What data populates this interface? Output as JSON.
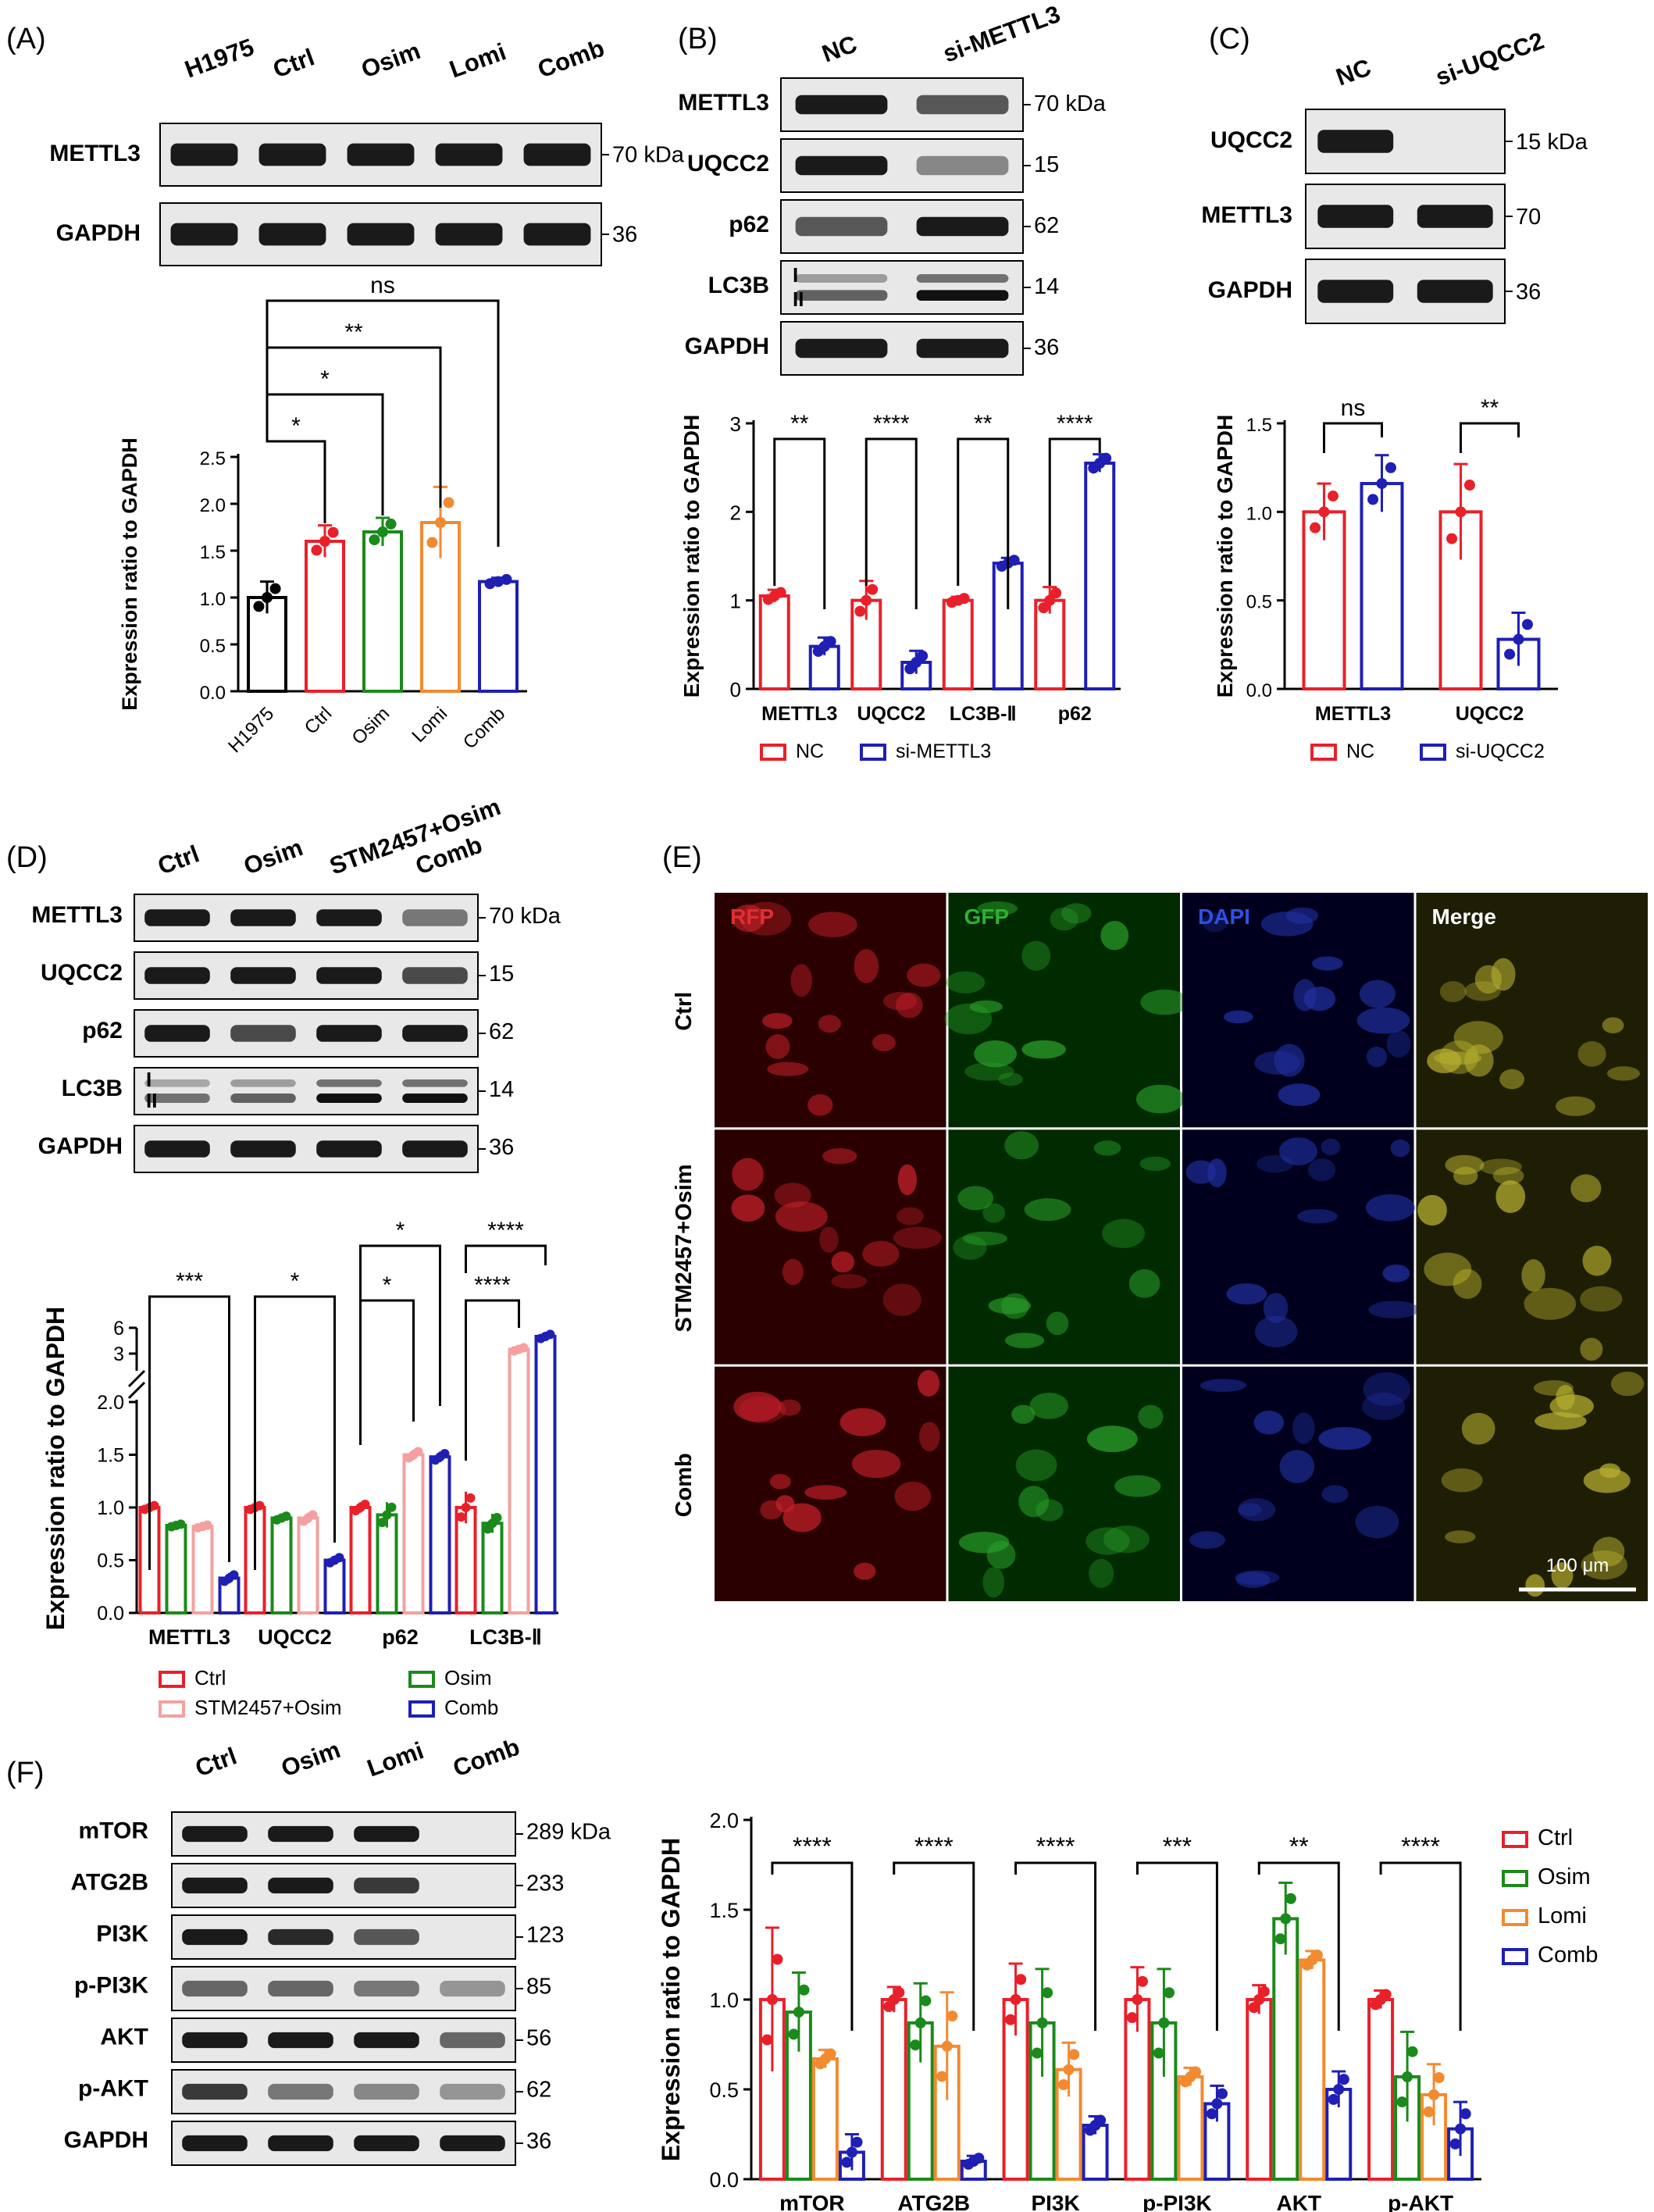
{
  "panel_labels": {
    "A": "(A)",
    "B": "(B)",
    "C": "(C)",
    "D": "(D)",
    "E": "(E)",
    "F": "(F)"
  },
  "colors": {
    "ctrl": "#e8202a",
    "osim": "#1a8a1a",
    "lomi": "#f28a30",
    "comb": "#1f1fb4",
    "stm": "#f4a0a0",
    "h1975": "#000000",
    "nc": "#e8202a",
    "si": "#1f1fb4"
  },
  "panelA": {
    "blot": {
      "lanes": [
        "H1975",
        "Ctrl",
        "Osim",
        "Lomi",
        "Comb"
      ],
      "rows": [
        {
          "name": "METTL3",
          "kda": "70 kDa",
          "bands": [
            1,
            1,
            1,
            1,
            1
          ]
        },
        {
          "name": "GAPDH",
          "kda": "36",
          "bands": [
            1,
            1,
            1,
            1,
            1
          ]
        }
      ]
    },
    "sig": [
      "ns",
      "**",
      "*",
      "*"
    ]
  },
  "panelB": {
    "blot": {
      "lanes": [
        "NC",
        "si-METTL3"
      ],
      "rows": [
        {
          "name": "METTL3",
          "kda": "70 kDa",
          "bands": [
            1,
            0.6
          ]
        },
        {
          "name": "UQCC2",
          "kda": "15",
          "bands": [
            1,
            0.3
          ]
        },
        {
          "name": "p62",
          "kda": "62",
          "bands": [
            0.6,
            1
          ]
        },
        {
          "name": "LC3B",
          "kda": "14",
          "bands": [
            0.5,
            1
          ]
        },
        {
          "name": "GAPDH",
          "kda": "36",
          "bands": [
            1,
            1
          ]
        }
      ]
    },
    "lc3_marks": [
      "I",
      "II"
    ],
    "sig": [
      "**",
      "****",
      "**",
      "****"
    ],
    "legend": [
      "NC",
      "si-METTL3"
    ]
  },
  "panelC": {
    "blot": {
      "lanes": [
        "NC",
        "si-UQCC2"
      ],
      "rows": [
        {
          "name": "UQCC2",
          "kda": "15 kDa",
          "bands": [
            1,
            0
          ]
        },
        {
          "name": "METTL3",
          "kda": "70",
          "bands": [
            1,
            1
          ]
        },
        {
          "name": "GAPDH",
          "kda": "36",
          "bands": [
            1,
            1
          ]
        }
      ]
    },
    "sig": [
      "ns",
      "**"
    ],
    "legend": [
      "NC",
      "si-UQCC2"
    ]
  },
  "panelD": {
    "blot": {
      "lanes": [
        "Ctrl",
        "Osim",
        "STM2457+Osim",
        "Comb"
      ],
      "rows": [
        {
          "name": "METTL3",
          "kda": "70 kDa",
          "bands": [
            1,
            1,
            1,
            0.4
          ]
        },
        {
          "name": "UQCC2",
          "kda": "15",
          "bands": [
            1,
            1,
            1,
            0.7
          ]
        },
        {
          "name": "p62",
          "kda": "62",
          "bands": [
            1,
            0.7,
            1,
            1
          ]
        },
        {
          "name": "LC3B",
          "kda": "14",
          "bands": [
            0.4,
            0.5,
            1,
            1
          ]
        },
        {
          "name": "GAPDH",
          "kda": "36",
          "bands": [
            1,
            1,
            1,
            1
          ]
        }
      ]
    },
    "lc3_marks": [
      "I",
      "II"
    ],
    "sig": [
      "***",
      "*",
      "*",
      "*",
      "****",
      "****"
    ],
    "legend": [
      "Ctrl",
      "Osim",
      "STM2457+Osim",
      "Comb"
    ]
  },
  "panelE": {
    "channels": [
      "RFP",
      "GFP",
      "DAPI",
      "Merge"
    ],
    "rows": [
      "Ctrl",
      "STM2457+Osim",
      "Comb"
    ],
    "scale": "100 μm"
  },
  "panelF": {
    "blot": {
      "lanes": [
        "Ctrl",
        "Osim",
        "Lomi",
        "Comb"
      ],
      "rows": [
        {
          "name": "mTOR",
          "kda": "289 kDa",
          "bands": [
            1,
            1,
            1,
            0
          ]
        },
        {
          "name": "ATG2B",
          "kda": "233",
          "bands": [
            1,
            1,
            0.8,
            0
          ]
        },
        {
          "name": "PI3K",
          "kda": "123",
          "bands": [
            1,
            0.9,
            0.6,
            0
          ]
        },
        {
          "name": "p-PI3K",
          "kda": "85",
          "bands": [
            0.5,
            0.5,
            0.4,
            0.2
          ]
        },
        {
          "name": "AKT",
          "kda": "56",
          "bands": [
            1,
            1,
            1,
            0.5
          ]
        },
        {
          "name": "p-AKT",
          "kda": "62",
          "bands": [
            0.8,
            0.4,
            0.3,
            0.2
          ]
        },
        {
          "name": "GAPDH",
          "kda": "36",
          "bands": [
            1,
            1,
            1,
            1
          ]
        }
      ]
    },
    "sig": [
      "****",
      "****",
      "****",
      "***",
      "**",
      "****"
    ],
    "legend": [
      "Ctrl",
      "Osim",
      "Lomi",
      "Comb"
    ]
  },
  "chart_data": [
    {
      "id": "A",
      "type": "bar",
      "ylabel": "Expression ratio to GAPDH",
      "categories": [
        "H1975",
        "Ctrl",
        "Osim",
        "Lomi",
        "Comb"
      ],
      "values": [
        1.0,
        1.6,
        1.7,
        1.8,
        1.17
      ],
      "errors": [
        0.17,
        0.17,
        0.15,
        0.38,
        0.04
      ],
      "ylim": [
        0,
        2.5
      ],
      "yticks": [
        0.0,
        0.5,
        1.0,
        1.5,
        2.0,
        2.5
      ]
    },
    {
      "id": "B",
      "type": "bar",
      "ylabel": "Expression ratio to GAPDH",
      "categories": [
        "METTL3",
        "UQCC2",
        "LC3B-Ⅱ",
        "p62"
      ],
      "series": [
        {
          "name": "NC",
          "values": [
            1.05,
            1.0,
            1.0,
            1.0
          ],
          "errors": [
            0.07,
            0.22,
            0.04,
            0.15
          ]
        },
        {
          "name": "si-METTL3",
          "values": [
            0.48,
            0.3,
            1.42,
            2.55
          ],
          "errors": [
            0.1,
            0.13,
            0.06,
            0.1
          ]
        }
      ],
      "ylim": [
        0,
        3
      ],
      "yticks": [
        0,
        1,
        2,
        3
      ]
    },
    {
      "id": "C",
      "type": "bar",
      "ylabel": "Expression ratio to GAPDH",
      "categories": [
        "METTL3",
        "UQCC2"
      ],
      "series": [
        {
          "name": "NC",
          "values": [
            1.0,
            1.0
          ],
          "errors": [
            0.16,
            0.27
          ]
        },
        {
          "name": "si-UQCC2",
          "values": [
            1.16,
            0.28
          ],
          "errors": [
            0.16,
            0.15
          ]
        }
      ],
      "ylim": [
        0,
        1.5
      ],
      "yticks": [
        0.0,
        0.5,
        1.0,
        1.5
      ]
    },
    {
      "id": "D",
      "type": "bar",
      "ylabel": "Expression ratio to GAPDH",
      "axis_break": true,
      "categories": [
        "METTL3",
        "UQCC2",
        "p62",
        "LC3B-Ⅱ"
      ],
      "series": [
        {
          "name": "Ctrl",
          "values": [
            1.0,
            1.0,
            1.0,
            1.0
          ],
          "errors": [
            0.03,
            0.03,
            0.05,
            0.15
          ]
        },
        {
          "name": "Osim",
          "values": [
            0.83,
            0.9,
            0.93,
            0.85
          ],
          "errors": [
            0.02,
            0.03,
            0.12,
            0.09
          ]
        },
        {
          "name": "STM2457+Osim",
          "values": [
            0.82,
            0.9,
            1.5,
            3.5
          ],
          "errors": [
            0.02,
            0.05,
            0.05,
            0.3
          ]
        },
        {
          "name": "Comb",
          "values": [
            0.33,
            0.5,
            1.48,
            5.0
          ],
          "errors": [
            0.05,
            0.04,
            0.05,
            0.4
          ]
        }
      ],
      "yticks": [
        0.0,
        0.5,
        1.0,
        1.5,
        2.0,
        3,
        6
      ]
    },
    {
      "id": "F",
      "type": "bar",
      "ylabel": "Expression ratio to GAPDH",
      "categories": [
        "mTOR",
        "ATG2B",
        "PI3K",
        "p-PI3K",
        "AKT",
        "p-AKT"
      ],
      "series": [
        {
          "name": "Ctrl",
          "values": [
            1.0,
            1.0,
            1.0,
            1.0,
            1.0,
            1.0
          ],
          "errors": [
            0.4,
            0.07,
            0.2,
            0.18,
            0.08,
            0.05
          ]
        },
        {
          "name": "Osim",
          "values": [
            0.93,
            0.87,
            0.87,
            0.87,
            1.45,
            0.57
          ],
          "errors": [
            0.22,
            0.22,
            0.3,
            0.3,
            0.2,
            0.25
          ]
        },
        {
          "name": "Lomi",
          "values": [
            0.67,
            0.74,
            0.61,
            0.57,
            1.22,
            0.47
          ],
          "errors": [
            0.05,
            0.3,
            0.15,
            0.05,
            0.05,
            0.17
          ]
        },
        {
          "name": "Comb",
          "values": [
            0.15,
            0.1,
            0.3,
            0.42,
            0.5,
            0.28
          ],
          "errors": [
            0.1,
            0.03,
            0.05,
            0.1,
            0.1,
            0.15
          ]
        }
      ],
      "ylim": [
        0,
        2.0
      ],
      "yticks": [
        0.0,
        0.5,
        1.0,
        1.5,
        2.0
      ]
    }
  ]
}
